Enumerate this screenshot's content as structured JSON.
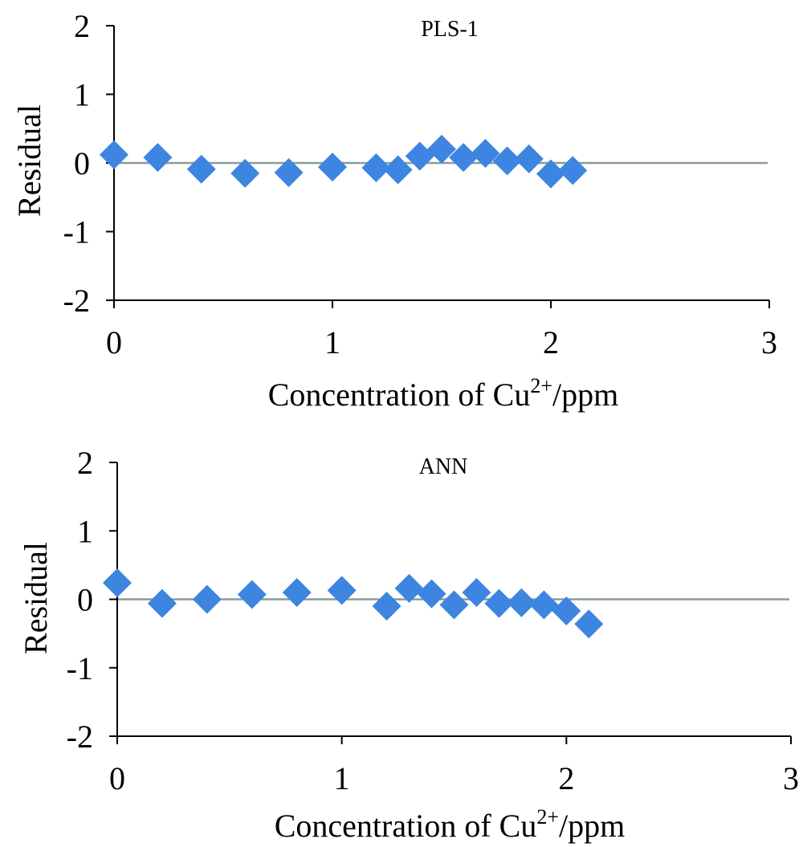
{
  "chart_data": [
    {
      "type": "scatter",
      "title": "PLS-1",
      "xlabel_main": "Concentration of Cu",
      "xlabel_sup": "2+",
      "xlabel_tail": "/ppm",
      "ylabel": "Residual",
      "xlim": [
        0,
        3
      ],
      "ylim": [
        -2,
        2
      ],
      "xticks": [
        "0",
        "1",
        "2",
        "3"
      ],
      "yticks": [
        "2",
        "1",
        "0",
        "-1",
        "-2"
      ],
      "zero_line": true,
      "marker": "diamond",
      "marker_color": "#3d85e0",
      "line_color": "#8a9a9a",
      "x": [
        0,
        0.2,
        0.4,
        0.6,
        0.8,
        1.0,
        1.2,
        1.3,
        1.4,
        1.5,
        1.6,
        1.7,
        1.8,
        1.9,
        2.0,
        2.1
      ],
      "y": [
        0.12,
        0.08,
        -0.09,
        -0.15,
        -0.14,
        -0.06,
        -0.07,
        -0.1,
        0.1,
        0.2,
        0.08,
        0.14,
        0.03,
        0.06,
        -0.16,
        -0.11
      ]
    },
    {
      "type": "scatter",
      "title": "ANN",
      "xlabel_main": "Concentration of Cu",
      "xlabel_sup": "2+",
      "xlabel_tail": "/ppm",
      "ylabel": "Residual",
      "xlim": [
        0,
        3
      ],
      "ylim": [
        -2,
        2
      ],
      "xticks": [
        "0",
        "1",
        "2",
        "3"
      ],
      "yticks": [
        "2",
        "1",
        "0",
        "-1",
        "-2"
      ],
      "zero_line": true,
      "marker": "diamond",
      "marker_color": "#3d85e0",
      "line_color": "#8a9a9a",
      "x": [
        0,
        0.2,
        0.4,
        0.6,
        0.8,
        1.0,
        1.2,
        1.3,
        1.4,
        1.5,
        1.6,
        1.7,
        1.8,
        1.9,
        2.0,
        2.1
      ],
      "y": [
        0.24,
        -0.06,
        0.0,
        0.07,
        0.1,
        0.13,
        -0.1,
        0.16,
        0.08,
        -0.08,
        0.1,
        -0.06,
        -0.05,
        -0.08,
        -0.17,
        -0.36
      ]
    }
  ]
}
